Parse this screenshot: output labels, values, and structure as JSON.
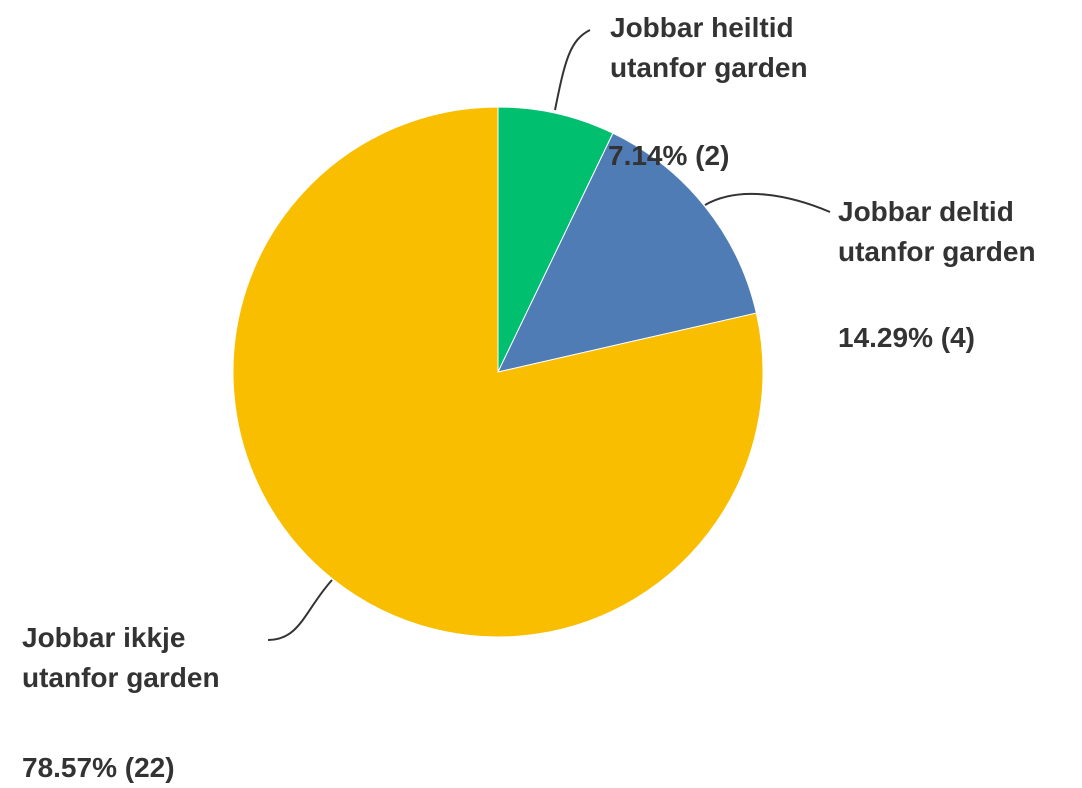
{
  "chart_data": {
    "type": "pie",
    "categories": [
      "Jobbar heiltid utanfor garden",
      "Jobbar deltid utanfor garden",
      "Jobbar ikkje utanfor garden"
    ],
    "values": [
      7.14,
      14.29,
      78.57
    ],
    "value_labels": [
      "7.14% (2)",
      "14.29% (4)",
      "78.57% (22)"
    ],
    "colors": [
      "#00bf6f",
      "#507cb6",
      "#f9be00"
    ]
  }
}
